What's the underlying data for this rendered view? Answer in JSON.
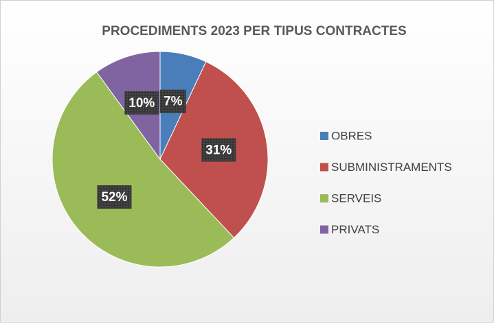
{
  "chart_data": {
    "type": "pie",
    "title": "PROCEDIMENTS 2023 PER TIPUS CONTRACTES",
    "categories": [
      "OBRES",
      "SUBMINISTRAMENTS",
      "SERVEIS",
      "PRIVATS"
    ],
    "values": [
      7,
      31,
      52,
      10
    ],
    "value_labels": [
      "7%",
      "31%",
      "52%",
      "10%"
    ],
    "colors": [
      "#4a7ebb",
      "#c0504d",
      "#9bbb59",
      "#8064a2"
    ],
    "legend": "right"
  }
}
